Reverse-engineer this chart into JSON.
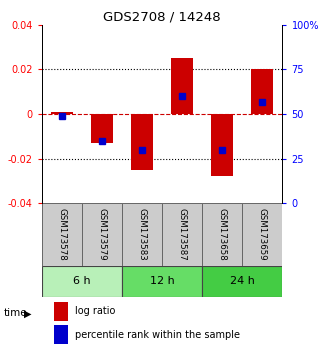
{
  "title": "GDS2708 / 14248",
  "samples": [
    "GSM173578",
    "GSM173579",
    "GSM173583",
    "GSM173587",
    "GSM173658",
    "GSM173659"
  ],
  "log_ratios": [
    0.001,
    -0.013,
    -0.025,
    0.025,
    -0.028,
    0.02
  ],
  "percentile_ranks": [
    49,
    35,
    30,
    60,
    30,
    57
  ],
  "time_groups": [
    {
      "label": "6 h",
      "start": 0,
      "end": 2,
      "color": "#b8f0b8"
    },
    {
      "label": "12 h",
      "start": 2,
      "end": 4,
      "color": "#66dd66"
    },
    {
      "label": "24 h",
      "start": 4,
      "end": 6,
      "color": "#44cc44"
    }
  ],
  "ylim_left": [
    -0.04,
    0.04
  ],
  "ylim_right": [
    0,
    100
  ],
  "yticks_left": [
    -0.04,
    -0.02,
    0,
    0.02,
    0.04
  ],
  "yticks_right": [
    0,
    25,
    50,
    75,
    100
  ],
  "ytick_labels_right": [
    "0",
    "25",
    "50",
    "75",
    "100%"
  ],
  "bar_color": "#cc0000",
  "marker_color": "#0000cc",
  "zero_line_color": "#cc0000",
  "background_color": "#ffffff",
  "sample_cell_color": "#cccccc",
  "legend_items": [
    "log ratio",
    "percentile rank within the sample"
  ],
  "time_label": "time"
}
